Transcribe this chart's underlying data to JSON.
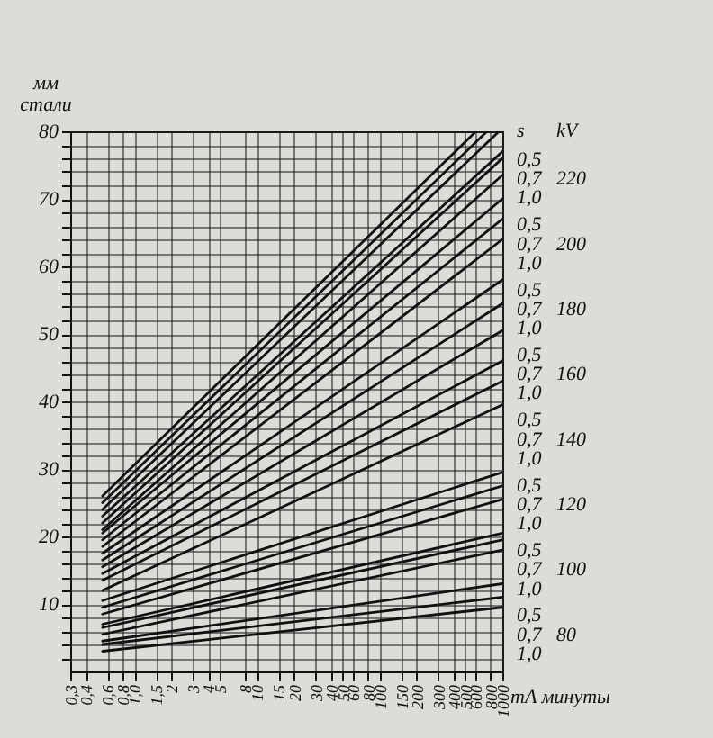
{
  "chart_data": {
    "type": "line",
    "xlabel": "mA минуты",
    "ylabel": "мм стали",
    "log": "x",
    "grid": true,
    "legend": false,
    "marker": "none",
    "line_style": "solid",
    "xlim": [
      0.3,
      1000
    ],
    "ylim": [
      0,
      80
    ],
    "xticks": [
      {
        "value": 0.3,
        "label": "0,3"
      },
      {
        "value": 0.4,
        "label": "0,4"
      },
      {
        "value": 0.6,
        "label": "0,6"
      },
      {
        "value": 0.8,
        "label": "0,8"
      },
      {
        "value": 1,
        "label": "1,0"
      },
      {
        "value": 1.5,
        "label": "1,5"
      },
      2,
      3,
      4,
      5,
      8,
      10,
      15,
      20,
      30,
      40,
      50,
      60,
      80,
      100,
      150,
      200,
      300,
      400,
      500,
      600,
      800,
      1000
    ],
    "yticks": [
      {
        "value": 2,
        "label": null
      },
      {
        "value": 4,
        "label": null
      },
      {
        "value": 6,
        "label": null
      },
      {
        "value": 8,
        "label": null
      },
      10,
      {
        "value": 12,
        "label": null
      },
      {
        "value": 14,
        "label": null
      },
      {
        "value": 16,
        "label": null
      },
      {
        "value": 18,
        "label": null
      },
      20,
      {
        "value": 22,
        "label": null
      },
      {
        "value": 24,
        "label": null
      },
      {
        "value": 26,
        "label": null
      },
      {
        "value": 28,
        "label": null
      },
      30,
      {
        "value": 32,
        "label": null
      },
      {
        "value": 34,
        "label": null
      },
      {
        "value": 36,
        "label": null
      },
      {
        "value": 38,
        "label": null
      },
      40,
      {
        "value": 42,
        "label": null
      },
      {
        "value": 44,
        "label": null
      },
      {
        "value": 46,
        "label": null
      },
      {
        "value": 48,
        "label": null
      },
      50,
      {
        "value": 52,
        "label": null
      },
      {
        "value": 54,
        "label": null
      },
      {
        "value": 56,
        "label": null
      },
      {
        "value": 58,
        "label": null
      },
      60,
      {
        "value": 62,
        "label": null
      },
      {
        "value": 64,
        "label": null
      },
      {
        "value": 66,
        "label": null
      },
      {
        "value": 68,
        "label": null
      },
      70,
      {
        "value": 72,
        "label": null
      },
      {
        "value": 74,
        "label": null
      },
      {
        "value": 76,
        "label": null
      },
      {
        "value": 78,
        "label": null
      },
      80
    ],
    "annotations": [
      "s",
      "kV",
      "0,5",
      "0,7",
      "1,0",
      "220",
      "0,5",
      "0,7",
      "1,0",
      "200",
      "0,5",
      "0,7",
      "1,0",
      "180",
      "0,5",
      "0,7",
      "1,0",
      "160",
      "0,5",
      "0,7",
      "1,0",
      "140",
      "0,5",
      "0,7",
      "1,0",
      "120",
      "0,5",
      "0,7",
      "1,0",
      "100",
      "0,5",
      "0,7",
      "1,0",
      "80"
    ],
    "series": [
      {
        "color": "#111111",
        "x": [
          0.55,
          610
        ],
        "values": [
          26,
          80
        ]
      },
      {
        "color": "#111111",
        "x": [
          0.55,
          750
        ],
        "values": [
          25,
          80
        ]
      },
      {
        "color": "#111111",
        "x": [
          0.55,
          940
        ],
        "values": [
          24,
          80
        ]
      },
      {
        "color": "#111111",
        "x": [
          0.55,
          1000
        ],
        "values": [
          23,
          77
        ]
      },
      {
        "color": "#111111",
        "x": [
          0.55,
          1000
        ],
        "values": [
          22,
          76
        ]
      },
      {
        "color": "#111111",
        "x": [
          0.55,
          1000
        ],
        "values": [
          21,
          73.5
        ]
      },
      {
        "color": "#111111",
        "x": [
          0.55,
          1000
        ],
        "values": [
          20.5,
          70
        ]
      },
      {
        "color": "#111111",
        "x": [
          0.55,
          1000
        ],
        "values": [
          19.5,
          67
        ]
      },
      {
        "color": "#111111",
        "x": [
          0.55,
          1000
        ],
        "values": [
          18.5,
          64
        ]
      },
      {
        "color": "#111111",
        "x": [
          0.55,
          1000
        ],
        "values": [
          17.5,
          58
        ]
      },
      {
        "color": "#111111",
        "x": [
          0.55,
          1000
        ],
        "values": [
          16.5,
          54.5
        ]
      },
      {
        "color": "#111111",
        "x": [
          0.55,
          1000
        ],
        "values": [
          15.5,
          50.5
        ]
      },
      {
        "color": "#111111",
        "x": [
          0.55,
          1000
        ],
        "values": [
          14.5,
          46
        ]
      },
      {
        "color": "#111111",
        "x": [
          0.55,
          1000
        ],
        "values": [
          13.5,
          43
        ]
      },
      {
        "color": "#111111",
        "x": [
          0.55,
          1000
        ],
        "values": [
          12,
          39.5
        ]
      },
      {
        "color": "#111111",
        "x": [
          0.55,
          1000
        ],
        "values": [
          10.5,
          29.5
        ]
      },
      {
        "color": "#111111",
        "x": [
          0.55,
          1000
        ],
        "values": [
          9.5,
          27.5
        ]
      },
      {
        "color": "#111111",
        "x": [
          0.55,
          1000
        ],
        "values": [
          8.5,
          25.5
        ]
      },
      {
        "color": "#111111",
        "x": [
          0.55,
          1000
        ],
        "values": [
          7,
          20.5
        ]
      },
      {
        "color": "#111111",
        "x": [
          0.55,
          1000
        ],
        "values": [
          6.5,
          19.5
        ]
      },
      {
        "color": "#111111",
        "x": [
          0.55,
          1000
        ],
        "values": [
          5.5,
          18
        ]
      },
      {
        "color": "#111111",
        "x": [
          0.55,
          1000
        ],
        "values": [
          4.5,
          13
        ]
      },
      {
        "color": "#111111",
        "x": [
          0.55,
          1000
        ],
        "values": [
          4,
          11
        ]
      },
      {
        "color": "#111111",
        "x": [
          0.55,
          1000
        ],
        "values": [
          3,
          9.5
        ]
      }
    ]
  }
}
